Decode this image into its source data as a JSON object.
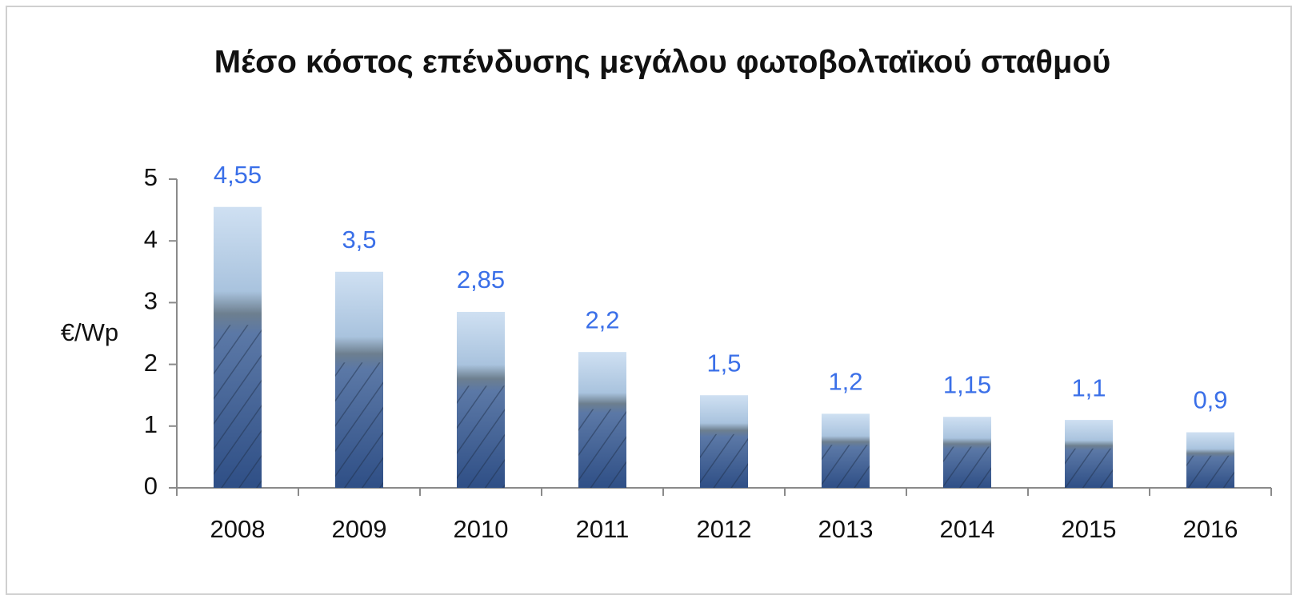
{
  "chart_data": {
    "type": "bar",
    "title": "Μέσο κόστος επένδυσης μεγάλου φωτοβολταϊκού σταθμού",
    "y_label": "€/Wp",
    "categories": [
      "2008",
      "2009",
      "2010",
      "2011",
      "2012",
      "2013",
      "2014",
      "2015",
      "2016"
    ],
    "values": [
      4.55,
      3.5,
      2.85,
      2.2,
      1.5,
      1.2,
      1.15,
      1.1,
      0.9
    ],
    "value_labels": [
      "4,55",
      "3,5",
      "2,85",
      "2,2",
      "1,5",
      "1,2",
      "1,15",
      "1,1",
      "0,9"
    ],
    "value_label_color": "#3a6fe8",
    "ylim": [
      0,
      5
    ],
    "yticks": [
      0,
      1,
      2,
      3,
      4,
      5
    ],
    "grid": false
  }
}
